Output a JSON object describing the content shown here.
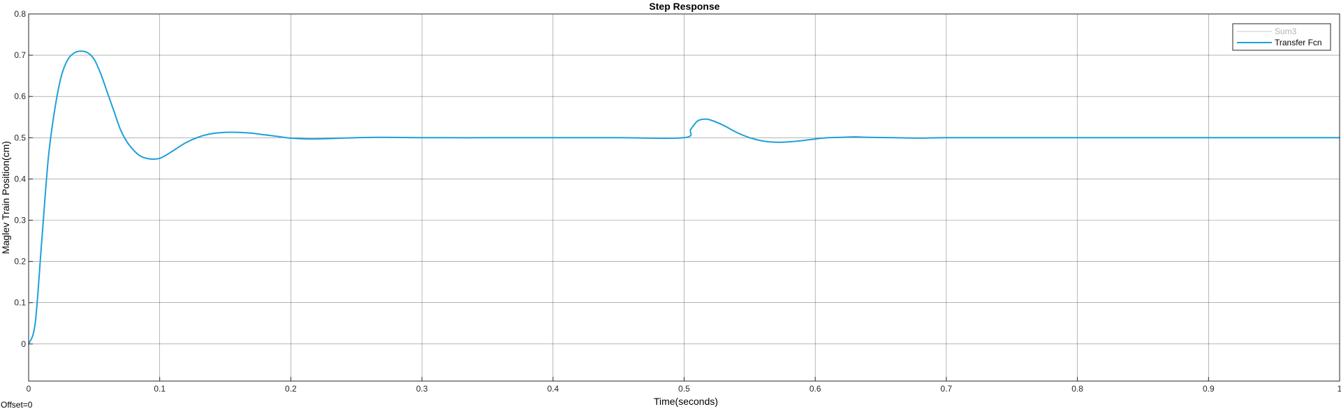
{
  "chart_data": {
    "type": "line",
    "title": "Step Response",
    "xlabel": "Time(seconds)",
    "ylabel": "Maglev Train Position(cm)",
    "xlim": [
      0,
      1
    ],
    "ylim": [
      -0.09,
      0.8
    ],
    "xticks": [
      0,
      0.1,
      0.2,
      0.3,
      0.4,
      0.5,
      0.6,
      0.7,
      0.8,
      0.9,
      1
    ],
    "xtick_labels": [
      "0",
      "0.1",
      "0.2",
      "0.3",
      "0.4",
      "0.5",
      "0.6",
      "0.7",
      "0.8",
      "0.9",
      "1"
    ],
    "yticks": [
      0,
      0.1,
      0.2,
      0.3,
      0.4,
      0.5,
      0.6,
      0.7,
      0.8
    ],
    "ytick_labels": [
      "0",
      "0.1",
      "0.2",
      "0.3",
      "0.4",
      "0.5",
      "0.6",
      "0.7",
      "0.8"
    ],
    "grid": true,
    "legend_position": "top-right",
    "series": [
      {
        "name": "Sum3",
        "color": "#c8c8c8",
        "x": [],
        "y": []
      },
      {
        "name": "Transfer Fcn",
        "color": "#1f9fdc",
        "x": [
          0,
          0.005,
          0.01,
          0.015,
          0.02,
          0.025,
          0.03,
          0.035,
          0.04,
          0.045,
          0.05,
          0.055,
          0.06,
          0.065,
          0.07,
          0.075,
          0.08,
          0.085,
          0.09,
          0.095,
          0.1,
          0.105,
          0.11,
          0.12,
          0.13,
          0.14,
          0.15,
          0.16,
          0.17,
          0.18,
          0.19,
          0.2,
          0.215,
          0.23,
          0.25,
          0.27,
          0.3,
          0.35,
          0.4,
          0.45,
          0.5,
          0.505,
          0.51,
          0.515,
          0.52,
          0.53,
          0.54,
          0.55,
          0.56,
          0.57,
          0.58,
          0.59,
          0.6,
          0.61,
          0.62,
          0.63,
          0.64,
          0.66,
          0.68,
          0.7,
          0.75,
          0.8,
          0.85,
          0.9,
          0.95,
          1
        ],
        "y": [
          0,
          0.05,
          0.25,
          0.45,
          0.57,
          0.65,
          0.69,
          0.706,
          0.71,
          0.706,
          0.69,
          0.655,
          0.61,
          0.565,
          0.52,
          0.49,
          0.47,
          0.456,
          0.45,
          0.448,
          0.45,
          0.458,
          0.468,
          0.488,
          0.502,
          0.51,
          0.513,
          0.513,
          0.511,
          0.507,
          0.503,
          0.499,
          0.497,
          0.498,
          0.5,
          0.501,
          0.5,
          0.5,
          0.5,
          0.5,
          0.5,
          0.52,
          0.54,
          0.545,
          0.543,
          0.53,
          0.513,
          0.5,
          0.492,
          0.489,
          0.49,
          0.493,
          0.497,
          0.5,
          0.501,
          0.502,
          0.501,
          0.5,
          0.499,
          0.5,
          0.5,
          0.5,
          0.5,
          0.5,
          0.5,
          0.5
        ]
      }
    ]
  },
  "footer": {
    "offset_label": "Offset=0"
  }
}
